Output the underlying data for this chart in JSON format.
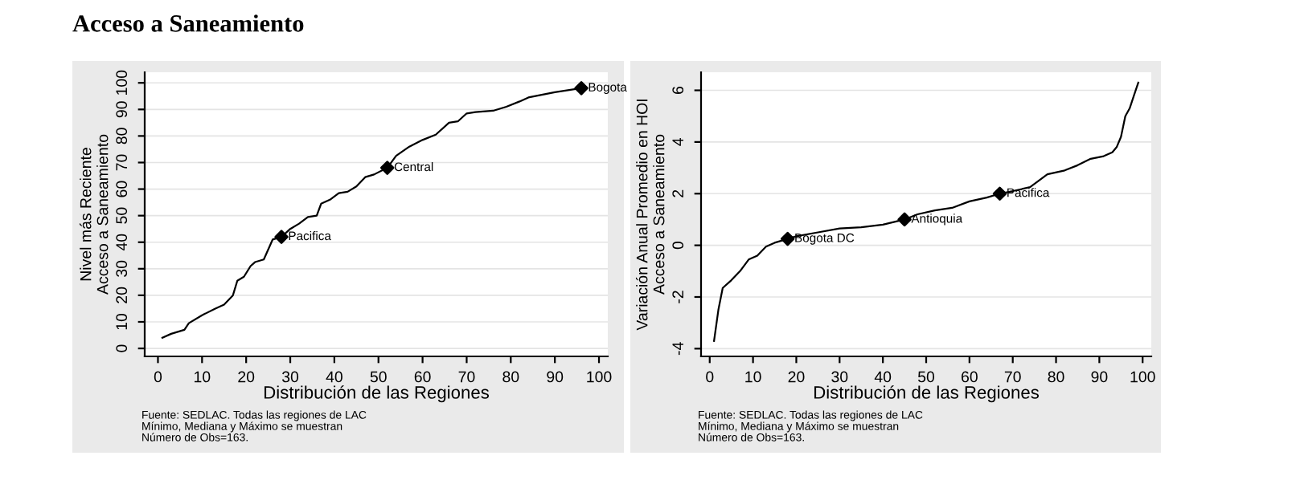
{
  "chart_data": [
    {
      "type": "line",
      "title": "Acceso a Saneamiento",
      "xlabel": "Distribución de las Regiones",
      "ylabel": "Nivel más Reciente\nAcceso a Saneamiento",
      "xlim": [
        -3,
        102
      ],
      "ylim": [
        -3,
        104
      ],
      "xticks": [
        0,
        10,
        20,
        30,
        40,
        50,
        60,
        70,
        80,
        90,
        100
      ],
      "yticks": [
        0,
        10,
        20,
        30,
        40,
        50,
        60,
        70,
        80,
        90,
        100
      ],
      "grid": "y",
      "legend": false,
      "series": [
        {
          "color": "#000000",
          "marker": "none",
          "x": [
            1,
            3,
            6,
            7,
            10,
            13,
            15,
            17,
            18,
            19.5,
            21,
            22,
            24,
            26,
            28,
            30,
            32,
            34,
            36,
            37,
            39,
            41,
            43,
            45,
            47,
            49,
            52,
            54,
            57,
            60,
            63,
            66,
            68,
            70,
            72,
            76,
            79,
            82,
            84,
            87,
            90,
            96
          ],
          "values": [
            4,
            5.5,
            7,
            9.5,
            12.5,
            15,
            16.5,
            20,
            25.5,
            27,
            31,
            32.5,
            33.5,
            41,
            42,
            45,
            47,
            49.5,
            50,
            54.5,
            56,
            58.5,
            59,
            61,
            64.5,
            65.5,
            68,
            72.5,
            76,
            78.5,
            80.5,
            85,
            85.5,
            88.5,
            89,
            89.5,
            91,
            93,
            94.5,
            95.5,
            96.5,
            98
          ]
        },
        {
          "type": "scatter",
          "color": "#000000",
          "marker": "diamond",
          "x": [
            28,
            52,
            96
          ],
          "values": [
            42,
            68,
            98
          ]
        }
      ],
      "annotations": [
        {
          "text": "Pacifica",
          "x": 28,
          "y": 42
        },
        {
          "text": "Central",
          "x": 52,
          "y": 68
        },
        {
          "text": "Bogota",
          "x": 96,
          "y": 98
        },
        "Fuente: SEDLAC. Todas las regiones de LAC",
        "Mínimo, Mediana y Máximo se muestran",
        "Número de Obs=163."
      ]
    },
    {
      "type": "line",
      "xlabel": "Distribución de las Regiones",
      "ylabel": "Variación Anual Promedio en HOI\nAcceso a Saneamiento",
      "xlim": [
        -2,
        102
      ],
      "ylim": [
        -4.3,
        6.7
      ],
      "xticks": [
        0,
        10,
        20,
        30,
        40,
        50,
        60,
        70,
        80,
        90,
        100
      ],
      "yticks": [
        -4,
        -2,
        0,
        2,
        4,
        6
      ],
      "grid": "y",
      "legend": false,
      "series": [
        {
          "color": "#000000",
          "marker": "none",
          "x": [
            1,
            2,
            3,
            5,
            7,
            9,
            11,
            13,
            15,
            18,
            20,
            25,
            30,
            35,
            40,
            45,
            48,
            52,
            56,
            60,
            64,
            67,
            70,
            74,
            76,
            78,
            82,
            85,
            88,
            91,
            93,
            94,
            95,
            96,
            97,
            98,
            99
          ],
          "values": [
            -3.7,
            -2.5,
            -1.65,
            -1.35,
            -1,
            -0.55,
            -0.4,
            -0.05,
            0.1,
            0.25,
            0.35,
            0.5,
            0.65,
            0.7,
            0.8,
            1.0,
            1.2,
            1.35,
            1.45,
            1.7,
            1.85,
            2.0,
            2.1,
            2.25,
            2.5,
            2.75,
            2.9,
            3.1,
            3.35,
            3.45,
            3.6,
            3.8,
            4.2,
            5.0,
            5.3,
            5.8,
            6.3
          ]
        },
        {
          "type": "scatter",
          "color": "#000000",
          "marker": "diamond",
          "x": [
            18,
            45,
            67
          ],
          "values": [
            0.25,
            1.0,
            2.0
          ]
        }
      ],
      "annotations": [
        {
          "text": "Bogota DC",
          "x": 18,
          "y": 0.25
        },
        {
          "text": "Antioquia",
          "x": 45,
          "y": 1.0
        },
        {
          "text": "Pacifica",
          "x": 67,
          "y": 2.0
        },
        "Fuente: SEDLAC. Todas las regiones de LAC",
        "Mínimo, Mediana y Máximo se muestran",
        "Número de Obs=163."
      ]
    }
  ]
}
